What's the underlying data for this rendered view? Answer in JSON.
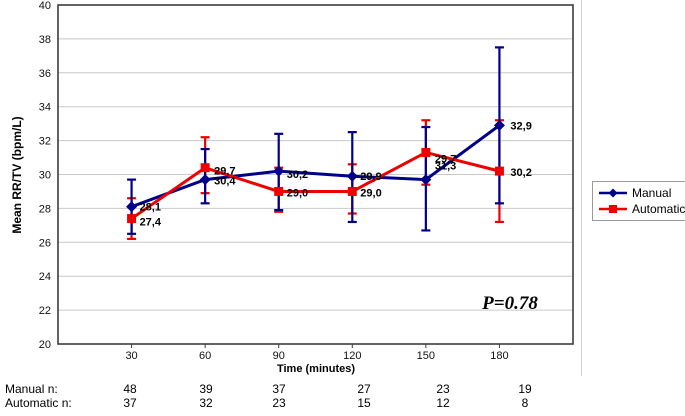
{
  "chart_data": {
    "type": "line",
    "title": "",
    "xlabel": "Time (minutes)",
    "ylabel": "Mean RR/TV (bpm/L)",
    "ylim": [
      20,
      40
    ],
    "ytick_step": 2,
    "yticks": [
      40,
      38,
      36,
      34,
      32,
      30,
      28,
      26,
      24,
      22,
      20
    ],
    "categories": [
      "30",
      "60",
      "90",
      "120",
      "150",
      "180"
    ],
    "grid": true,
    "legend_position": "right",
    "annotation": "P=0.78",
    "series": [
      {
        "name": "Manual",
        "color": "#000088",
        "marker": "diamond",
        "values": [
          28.1,
          29.7,
          30.2,
          29.9,
          29.7,
          32.9
        ],
        "data_labels": [
          "28,1",
          "29,7",
          "30,2",
          "29,9",
          "29,7",
          "32,9"
        ],
        "error_low": [
          26.5,
          28.3,
          27.9,
          27.2,
          26.7,
          28.3
        ],
        "error_high": [
          29.7,
          31.5,
          32.4,
          32.5,
          32.8,
          37.5
        ]
      },
      {
        "name": "Automatic",
        "color": "#EE0000",
        "marker": "square",
        "values": [
          27.4,
          30.4,
          29.0,
          29.0,
          31.3,
          30.2
        ],
        "data_labels": [
          "27,4",
          "30,4",
          "29,0",
          "29,0",
          "31,3",
          "30,2"
        ],
        "error_low": [
          26.2,
          28.9,
          27.8,
          27.7,
          29.4,
          27.2
        ],
        "error_high": [
          28.6,
          32.2,
          30.4,
          30.6,
          33.2,
          33.2
        ]
      }
    ]
  },
  "footer": {
    "rows": [
      {
        "label": "Manual n:",
        "values": [
          "48",
          "39",
          "37",
          "27",
          "23",
          "19"
        ]
      },
      {
        "label": "Automatic n:",
        "values": [
          "37",
          "32",
          "23",
          "15",
          "12",
          "8"
        ]
      }
    ]
  }
}
